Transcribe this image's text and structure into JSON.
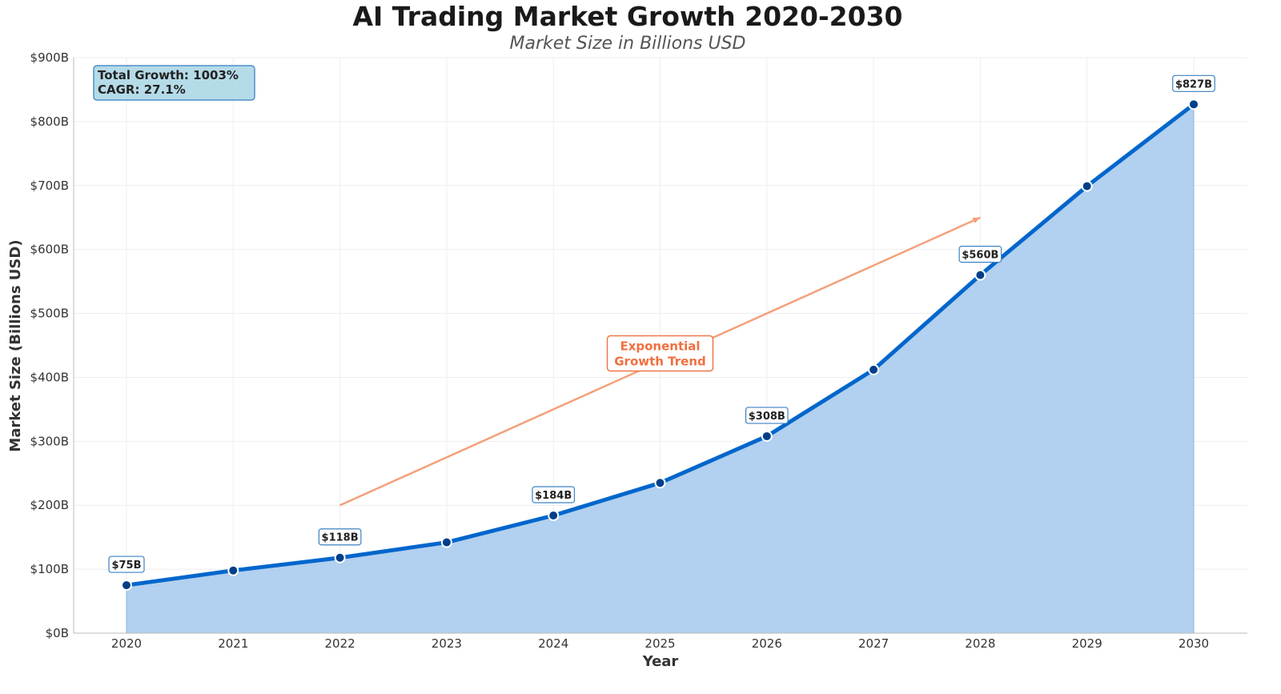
{
  "chart_data": {
    "type": "area",
    "title": "AI Trading Market Growth 2020-2030",
    "subtitle": "Market Size in Billions USD",
    "xlabel": "Year",
    "ylabel": "Market Size (Billions USD)",
    "x": [
      2020,
      2021,
      2022,
      2023,
      2024,
      2025,
      2026,
      2027,
      2028,
      2029,
      2030
    ],
    "values": [
      75,
      98,
      118,
      142,
      184,
      235,
      308,
      412,
      560,
      699,
      827
    ],
    "data_labels": {
      "2020": "$75B",
      "2022": "$118B",
      "2024": "$184B",
      "2026": "$308B",
      "2028": "$560B",
      "2030": "$827B"
    },
    "ylim": [
      0,
      900
    ],
    "yticks": [
      0,
      100,
      200,
      300,
      400,
      500,
      600,
      700,
      800,
      900
    ],
    "ytick_labels": [
      "$0B",
      "$100B",
      "$200B",
      "$300B",
      "$400B",
      "$500B",
      "$600B",
      "$700B",
      "$800B",
      "$900B"
    ],
    "grid": true,
    "stats_box": {
      "line1": "Total Growth: 1003%",
      "line2": "CAGR: 27.1%"
    },
    "annotation": {
      "line1": "Exponential",
      "line2": "Growth Trend",
      "arrow_from": [
        2022,
        200
      ],
      "arrow_to": [
        2028,
        650
      ],
      "text_at": [
        2025,
        420
      ]
    },
    "colors": {
      "line": "#0066cc",
      "fill": "#b2d0ef",
      "marker": "#003f8a",
      "annotation": "#f07040",
      "arrow": "#f4a07a",
      "stats_bg": "#add8e6"
    }
  }
}
